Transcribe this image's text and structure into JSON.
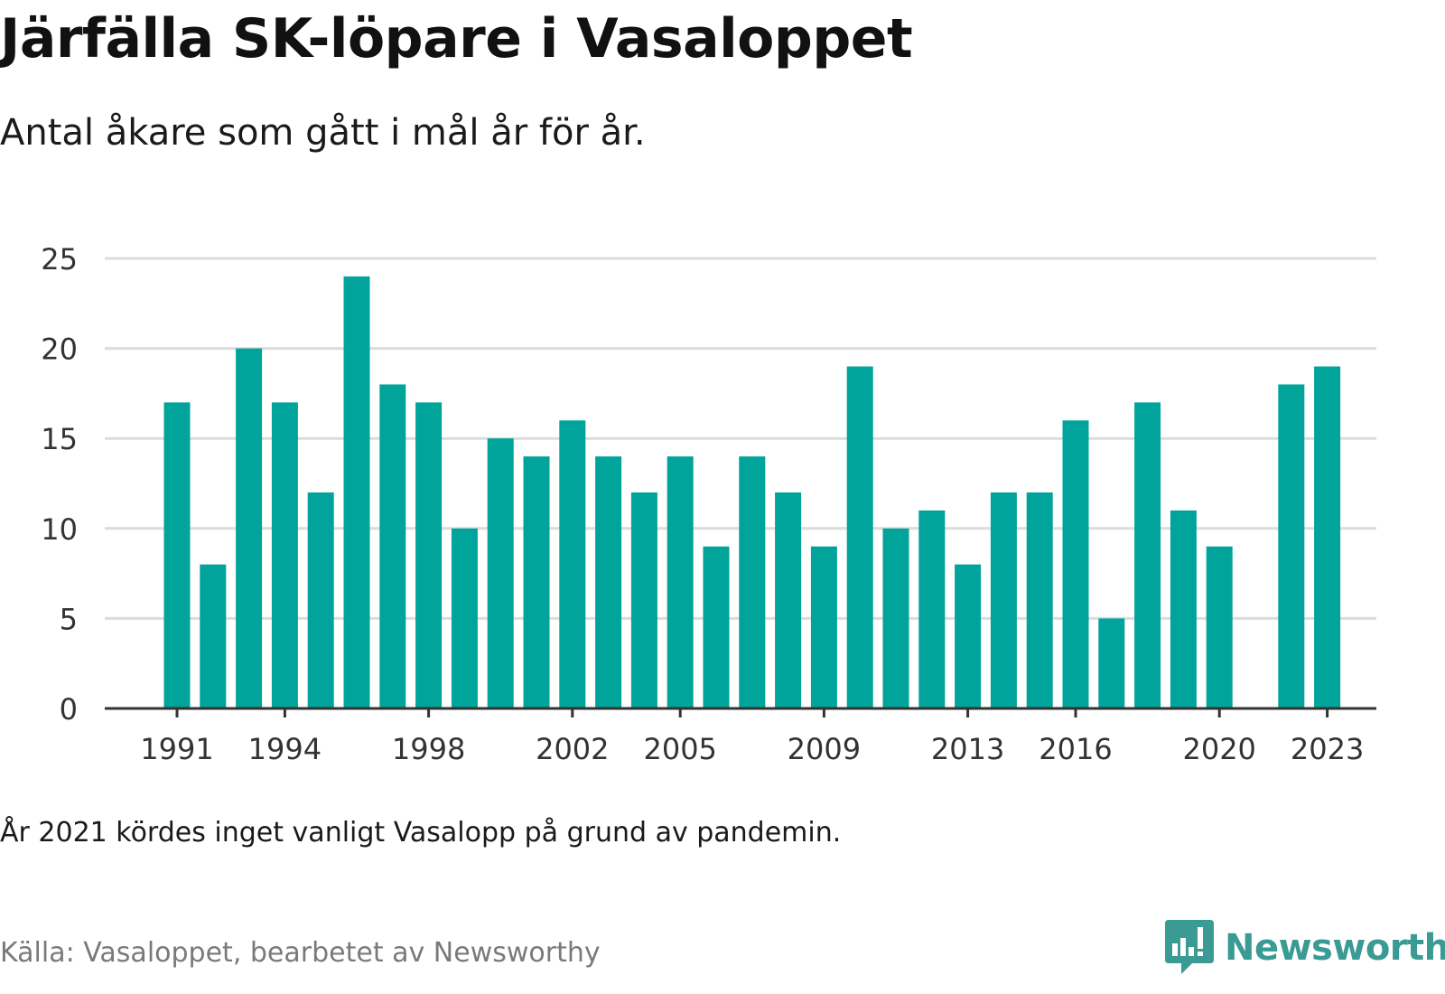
{
  "title": "Järfälla SK-löpare i Vasaloppet",
  "subtitle": "Antal åkare som gått i mål år för år.",
  "note": "År 2021 kördes inget vanligt Vasalopp på grund av pandemin.",
  "source": "Källa: Vasaloppet, bearbetet av Newsworthy",
  "brand": {
    "name": "Newsworthy",
    "color": "#3a9a94",
    "icon": "chat-bubble-bar-chart-icon"
  },
  "chart_data": {
    "type": "bar",
    "title": "",
    "xlabel": "",
    "ylabel": "",
    "ylim": [
      0,
      25
    ],
    "y_ticks": [
      0,
      5,
      10,
      15,
      20,
      25
    ],
    "x_tick_labels": [
      1991,
      1994,
      1998,
      2002,
      2005,
      2009,
      2013,
      2016,
      2020,
      2023
    ],
    "grid": true,
    "bar_color": "#00a49a",
    "categories": [
      1991,
      1992,
      1993,
      1994,
      1995,
      1996,
      1997,
      1998,
      1999,
      2000,
      2001,
      2002,
      2003,
      2004,
      2005,
      2006,
      2007,
      2008,
      2009,
      2010,
      2011,
      2012,
      2013,
      2014,
      2015,
      2016,
      2017,
      2018,
      2019,
      2020,
      2021,
      2022,
      2023
    ],
    "values": [
      17,
      8,
      20,
      17,
      12,
      24,
      18,
      17,
      10,
      15,
      14,
      16,
      14,
      12,
      14,
      9,
      14,
      12,
      9,
      19,
      10,
      11,
      8,
      12,
      12,
      16,
      5,
      17,
      11,
      9,
      null,
      18,
      19
    ]
  }
}
